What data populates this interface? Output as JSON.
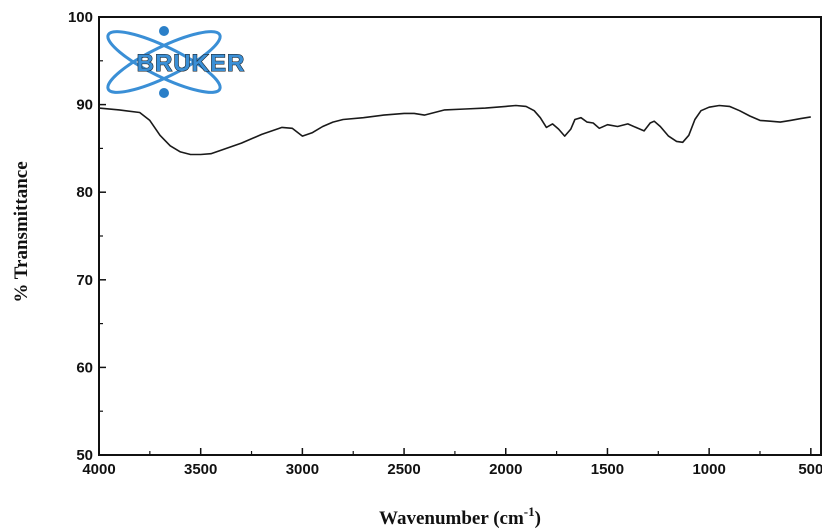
{
  "chart_data": {
    "type": "line",
    "title": "",
    "xlabel": "Wavenumber (cm",
    "xlabel_superscript": "-1",
    "xlabel_suffix": ")",
    "ylabel": "% Transmittance",
    "xlim": [
      4000,
      450
    ],
    "ylim": [
      50,
      100
    ],
    "x_reversed": true,
    "xticks": [
      4000,
      3500,
      3000,
      2500,
      2000,
      1500,
      1000,
      500
    ],
    "yticks": [
      50,
      60,
      70,
      80,
      90,
      100
    ],
    "grid": false,
    "legend": "none",
    "line_color": "#1a1a1a",
    "series": [
      {
        "x": [
          4000,
          3900,
          3800,
          3750,
          3700,
          3650,
          3600,
          3550,
          3500,
          3450,
          3400,
          3300,
          3200,
          3100,
          3050,
          3000,
          2950,
          2900,
          2850,
          2800,
          2700,
          2600,
          2500,
          2450,
          2400,
          2300,
          2200,
          2100,
          2000,
          1950,
          1900,
          1860,
          1830,
          1800,
          1770,
          1740,
          1710,
          1680,
          1660,
          1630,
          1600,
          1570,
          1540,
          1500,
          1450,
          1400,
          1360,
          1320,
          1290,
          1270,
          1240,
          1200,
          1160,
          1130,
          1100,
          1070,
          1040,
          1000,
          950,
          900,
          850,
          800,
          750,
          700,
          650,
          600,
          550,
          500
        ],
        "y": [
          89.6,
          89.4,
          89.1,
          88.2,
          86.5,
          85.3,
          84.6,
          84.3,
          84.3,
          84.4,
          84.8,
          85.6,
          86.6,
          87.4,
          87.3,
          86.4,
          86.8,
          87.5,
          88.0,
          88.3,
          88.5,
          88.8,
          89.0,
          89.0,
          88.8,
          89.4,
          89.5,
          89.6,
          89.8,
          89.9,
          89.8,
          89.3,
          88.5,
          87.4,
          87.8,
          87.2,
          86.4,
          87.2,
          88.3,
          88.5,
          88.0,
          87.9,
          87.3,
          87.7,
          87.5,
          87.8,
          87.4,
          87.0,
          87.9,
          88.1,
          87.5,
          86.4,
          85.8,
          85.7,
          86.5,
          88.3,
          89.3,
          89.7,
          89.9,
          89.8,
          89.3,
          88.7,
          88.2,
          88.1,
          88.0,
          88.2,
          88.4,
          88.6
        ]
      }
    ]
  },
  "logo": {
    "text": "BRUKER",
    "color": "#3a8fd6"
  }
}
